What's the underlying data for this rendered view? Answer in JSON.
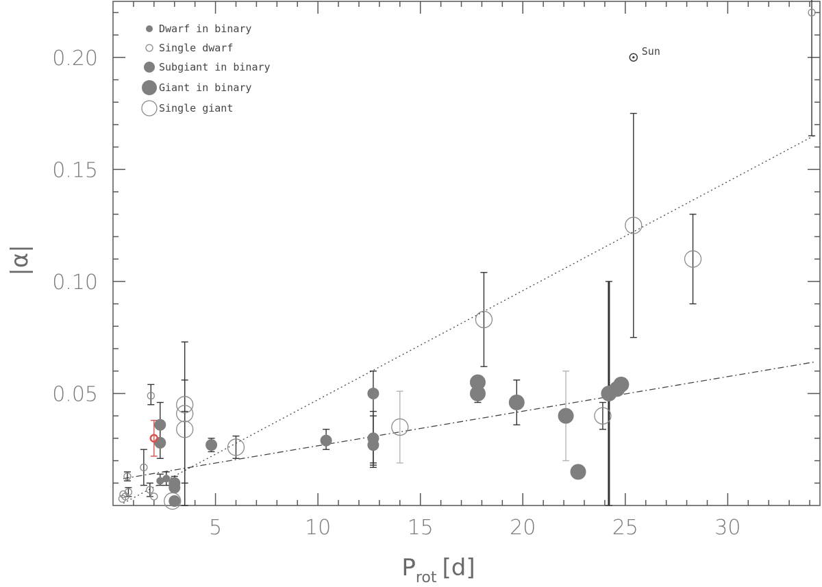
{
  "chart_data": {
    "type": "scatter",
    "title": "",
    "xlabel_main": "P",
    "xlabel_sub": "rot",
    "xlabel_unit": "[d]",
    "ylabel": "|α|",
    "xlim": [
      0,
      34.5
    ],
    "ylim": [
      0,
      0.225
    ],
    "xticks": [
      5,
      10,
      15,
      20,
      25,
      30
    ],
    "xtick_labels": [
      "5",
      "10",
      "15",
      "20",
      "25",
      "30"
    ],
    "yticks": [
      0.05,
      0.1,
      0.15,
      0.2
    ],
    "ytick_labels": [
      "0.05",
      "0.10",
      "0.15",
      "0.20"
    ],
    "grid": false,
    "legend_position": "top-left",
    "legend": [
      {
        "label": "Dwarf in binary",
        "marker": "filled-small"
      },
      {
        "label": "Single dwarf",
        "marker": "open-small"
      },
      {
        "label": "Subgiant in binary",
        "marker": "filled-medium"
      },
      {
        "label": "Giant in binary",
        "marker": "filled-large"
      },
      {
        "label": "Single giant",
        "marker": "open-large"
      }
    ],
    "colors": {
      "filled": "#7f7f7f",
      "open_stroke": "#8a8a8a",
      "highlight": "#d9534f",
      "errorbar_dark": "#333333",
      "errorbar_light": "#b5b5b5"
    },
    "fit_lines": [
      {
        "style": "dotted",
        "x": [
          0.5,
          34.2
        ],
        "y": [
          0.001,
          0.165
        ]
      },
      {
        "style": "dash-dot",
        "x": [
          0.5,
          34.2
        ],
        "y": [
          0.012,
          0.064
        ]
      }
    ],
    "annotations": [
      {
        "text": "Sun",
        "x": 25.4,
        "y": 0.2,
        "symbol": "sun"
      }
    ],
    "series": [
      {
        "name": "Dwarf in binary",
        "points": [
          {
            "x": 2.3,
            "y": 0.011,
            "err": [
              0.009,
              0.014
            ]
          },
          {
            "x": 2.6,
            "y": 0.012,
            "err": [
              0.009,
              0.015
            ]
          }
        ]
      },
      {
        "name": "Single dwarf",
        "points": [
          {
            "x": 0.45,
            "y": 0.003
          },
          {
            "x": 0.5,
            "y": 0.005
          },
          {
            "x": 0.6,
            "y": 0.004
          },
          {
            "x": 0.7,
            "y": 0.013,
            "err": [
              0.011,
              0.015
            ]
          },
          {
            "x": 0.75,
            "y": 0.006,
            "err": [
              0.004,
              0.008
            ]
          },
          {
            "x": 1.5,
            "y": 0.017,
            "err": [
              0.009,
              0.025
            ]
          },
          {
            "x": 1.8,
            "y": 0.007,
            "err": [
              0.004,
              0.01
            ]
          },
          {
            "x": 1.85,
            "y": 0.049,
            "err": [
              0.045,
              0.054
            ]
          },
          {
            "x": 2.0,
            "y": 0.004
          },
          {
            "x": 34.1,
            "y": 0.22,
            "err": [
              0.165,
              0.227
            ]
          }
        ]
      },
      {
        "name": "Subgiant in binary",
        "points": [
          {
            "x": 2.3,
            "y": 0.036,
            "err": [
              0.028,
              0.046
            ]
          },
          {
            "x": 2.3,
            "y": 0.028,
            "err": [
              0.021,
              0.035
            ]
          },
          {
            "x": 3.0,
            "y": 0.01,
            "err": [
              0.008,
              0.013
            ]
          },
          {
            "x": 3.0,
            "y": 0.008,
            "err": [
              0.006,
              0.011
            ]
          },
          {
            "x": 3.0,
            "y": 0.002
          },
          {
            "x": 4.8,
            "y": 0.027,
            "err": [
              0.024,
              0.03
            ]
          },
          {
            "x": 10.4,
            "y": 0.029,
            "err": [
              0.025,
              0.034
            ]
          },
          {
            "x": 12.7,
            "y": 0.05,
            "err": [
              0.018,
              0.06
            ]
          },
          {
            "x": 12.7,
            "y": 0.027,
            "err": [
              0.017,
              0.04
            ]
          },
          {
            "x": 12.7,
            "y": 0.03,
            "err": [
              0.019,
              0.042
            ]
          }
        ]
      },
      {
        "name": "Giant in binary",
        "points": [
          {
            "x": 17.8,
            "y": 0.055
          },
          {
            "x": 17.8,
            "y": 0.05,
            "err": [
              0.046,
              0.054
            ]
          },
          {
            "x": 19.7,
            "y": 0.046,
            "err": [
              0.036,
              0.056
            ]
          },
          {
            "x": 22.1,
            "y": 0.04,
            "err": [
              0.02,
              0.06
            ]
          },
          {
            "x": 22.7,
            "y": 0.015
          },
          {
            "x": 24.2,
            "y": 0.05,
            "err": [
              0.0,
              0.1
            ]
          },
          {
            "x": 24.6,
            "y": 0.052
          },
          {
            "x": 24.8,
            "y": 0.054
          }
        ]
      },
      {
        "name": "Single giant",
        "points": [
          {
            "x": 2.9,
            "y": 0.002
          },
          {
            "x": 3.5,
            "y": 0.045,
            "err": [
              0.0,
              0.073
            ]
          },
          {
            "x": 3.5,
            "y": 0.041,
            "err": [
              0.0,
              0.056
            ]
          },
          {
            "x": 3.5,
            "y": 0.034,
            "err": [
              0.01,
              0.042
            ]
          },
          {
            "x": 6.0,
            "y": 0.026,
            "err": [
              0.021,
              0.031
            ]
          },
          {
            "x": 14.0,
            "y": 0.035,
            "err": [
              0.019,
              0.051
            ]
          },
          {
            "x": 18.1,
            "y": 0.083,
            "err": [
              0.062,
              0.104
            ]
          },
          {
            "x": 23.9,
            "y": 0.04,
            "err": [
              0.034,
              0.046
            ]
          },
          {
            "x": 25.4,
            "y": 0.125,
            "err": [
              0.075,
              0.175
            ]
          },
          {
            "x": 28.3,
            "y": 0.11,
            "err": [
              0.09,
              0.13
            ]
          }
        ]
      },
      {
        "name": "highlight",
        "points": [
          {
            "x": 2.0,
            "y": 0.03,
            "err": [
              0.022,
              0.038
            ]
          }
        ]
      }
    ]
  }
}
